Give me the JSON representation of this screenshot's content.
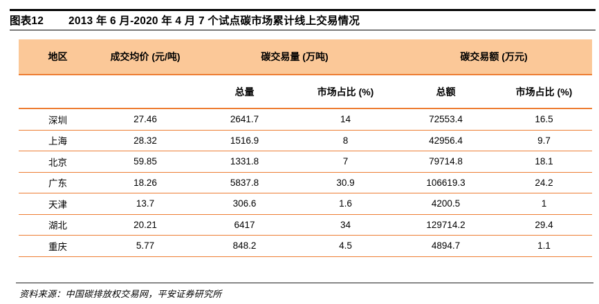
{
  "figure": {
    "label": "图表12",
    "title": "2013 年 6 月-2020 年 4 月 7 个试点碳市场累计线上交易情况"
  },
  "table": {
    "headers": {
      "region": "地区",
      "avg_price": "成交均价 (元/吨)",
      "volume_group": "碳交易量 (万吨)",
      "amount_group": "碳交易额 (万元)",
      "volume_total": "总量",
      "volume_share": "市场占比 (%)",
      "amount_total": "总额",
      "amount_share": "市场占比 (%)"
    },
    "rows": [
      {
        "cells": [
          "深圳",
          "27.46",
          "2641.7",
          "14",
          "72553.4",
          "16.5"
        ]
      },
      {
        "cells": [
          "上海",
          "28.32",
          "1516.9",
          "8",
          "42956.4",
          "9.7"
        ]
      },
      {
        "cells": [
          "北京",
          "59.85",
          "1331.8",
          "7",
          "79714.8",
          "18.1"
        ]
      },
      {
        "cells": [
          "广东",
          "18.26",
          "5837.8",
          "30.9",
          "106619.3",
          "24.2"
        ]
      },
      {
        "cells": [
          "天津",
          "13.7",
          "306.6",
          "1.6",
          "4200.5",
          "1"
        ]
      },
      {
        "cells": [
          "湖北",
          "20.21",
          "6417",
          "34",
          "129714.2",
          "29.4"
        ]
      },
      {
        "cells": [
          "重庆",
          "5.77",
          "848.2",
          "4.5",
          "4894.7",
          "1.1"
        ]
      }
    ]
  },
  "source": {
    "text": "资料来源：中国碳排放权交易网，平安证券研究所"
  },
  "colors": {
    "header_bg": "#FBC898",
    "rule_orange": "#ED7C31",
    "rule_black": "#000000"
  }
}
